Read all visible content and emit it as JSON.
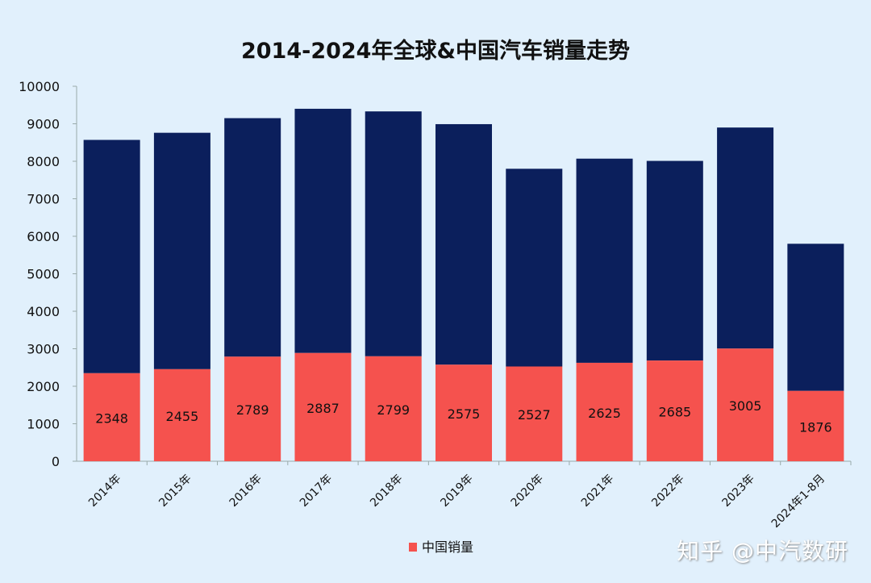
{
  "chart_data": {
    "type": "bar",
    "stacked": true,
    "title": "2014-2024年全球&中国汽车销量走势",
    "xlabel": "",
    "ylabel": "",
    "ylim": [
      0,
      10000
    ],
    "yticks": [
      0,
      1000,
      2000,
      3000,
      4000,
      5000,
      6000,
      7000,
      8000,
      9000,
      10000
    ],
    "categories": [
      "2014年",
      "2015年",
      "2016年",
      "2017年",
      "2018年",
      "2019年",
      "2020年",
      "2021年",
      "2022年",
      "2023年",
      "2024年1-8月"
    ],
    "series": [
      {
        "name": "中国销量",
        "color": "#f5524e",
        "values": [
          2348,
          2455,
          2789,
          2887,
          2799,
          2575,
          2527,
          2625,
          2685,
          3005,
          1876
        ],
        "labels_shown": true
      },
      {
        "name": "",
        "color": "#0b1f5c",
        "totals": [
          8570,
          8760,
          9150,
          9400,
          9330,
          8990,
          7800,
          8070,
          8010,
          8900,
          5800
        ],
        "labels_shown": false
      }
    ],
    "legend": {
      "position": "bottom",
      "entries": [
        "中国销量"
      ]
    },
    "grid": false
  },
  "watermark": "知乎 @中汽数研"
}
